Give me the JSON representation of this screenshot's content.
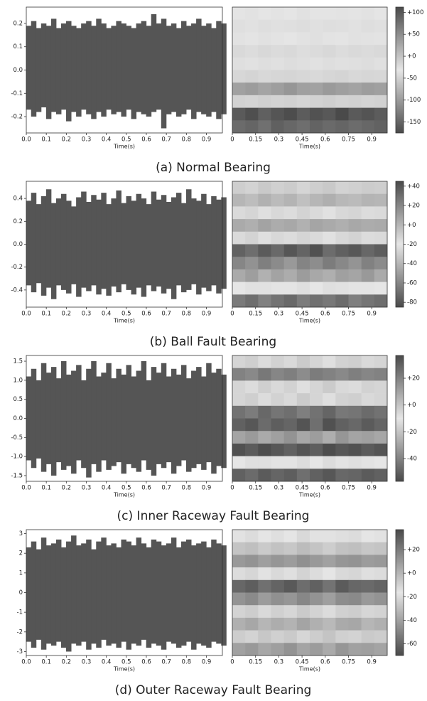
{
  "captions": [
    "(a) Normal Bearing",
    "(b) Ball Fault Bearing",
    "(c) Inner Raceway Fault Bearing",
    "(d) Outer Raceway Fault Bearing"
  ],
  "chart_data": [
    {
      "type": "area",
      "xlabel": "Time(s)",
      "color": "#555555",
      "x": [
        0,
        0.025,
        0.05,
        0.075,
        0.1,
        0.125,
        0.15,
        0.175,
        0.2,
        0.225,
        0.25,
        0.275,
        0.3,
        0.325,
        0.35,
        0.375,
        0.4,
        0.425,
        0.45,
        0.475,
        0.5,
        0.525,
        0.55,
        0.575,
        0.6,
        0.625,
        0.65,
        0.675,
        0.7,
        0.725,
        0.75,
        0.775,
        0.8,
        0.825,
        0.85,
        0.875,
        0.9,
        0.925,
        0.95,
        0.975
      ],
      "upper": [
        0.19,
        0.21,
        0.18,
        0.2,
        0.19,
        0.22,
        0.18,
        0.2,
        0.21,
        0.19,
        0.18,
        0.2,
        0.21,
        0.19,
        0.22,
        0.2,
        0.18,
        0.19,
        0.21,
        0.2,
        0.19,
        0.18,
        0.2,
        0.21,
        0.19,
        0.24,
        0.2,
        0.22,
        0.19,
        0.2,
        0.18,
        0.21,
        0.19,
        0.2,
        0.22,
        0.19,
        0.2,
        0.18,
        0.21,
        0.2
      ],
      "lower": [
        -0.17,
        -0.2,
        -0.18,
        -0.16,
        -0.21,
        -0.18,
        -0.19,
        -0.17,
        -0.22,
        -0.18,
        -0.2,
        -0.17,
        -0.19,
        -0.21,
        -0.18,
        -0.2,
        -0.17,
        -0.19,
        -0.18,
        -0.2,
        -0.17,
        -0.21,
        -0.18,
        -0.19,
        -0.2,
        -0.18,
        -0.17,
        -0.25,
        -0.19,
        -0.18,
        -0.2,
        -0.19,
        -0.17,
        -0.21,
        -0.18,
        -0.19,
        -0.2,
        -0.18,
        -0.21,
        -0.19
      ],
      "xlim": [
        0,
        0.98
      ],
      "xticks": [
        {
          "value": 0,
          "label": "0.0"
        },
        0.1,
        0.2,
        0.3,
        0.4,
        0.5,
        0.6,
        0.7,
        0.8,
        0.9
      ],
      "ylim": [
        -0.27,
        0.27
      ],
      "yticks": [
        0.2,
        0.1,
        {
          "value": 0,
          "label": "0.0"
        },
        -0.1,
        -0.2
      ]
    },
    {
      "type": "heatmap",
      "xlabel": "Time(s)",
      "colors": [
        "#4a4a4a",
        "#e6e6e6",
        "#4a4a4a"
      ],
      "xlim": [
        0,
        1
      ],
      "xticks": [
        0,
        0.15,
        0.3,
        0.45,
        0.6,
        0.75,
        0.9
      ],
      "zlim": [
        -175,
        112
      ],
      "zticks": [
        {
          "value": 100,
          "label": "+100"
        },
        {
          "value": 50,
          "label": "+50"
        },
        {
          "value": 0,
          "label": "+0"
        },
        -50,
        -100,
        -150
      ],
      "values": [
        [
          -30,
          -28,
          -32,
          -29,
          -31,
          -27,
          -30,
          -33,
          -29,
          -30,
          -28,
          -31
        ],
        [
          -25,
          -27,
          -24,
          -26,
          -25,
          -23,
          -26,
          -24,
          -25,
          -27,
          -24,
          -26
        ],
        [
          -35,
          -33,
          -36,
          -34,
          -32,
          -35,
          -37,
          -34,
          -33,
          -36,
          -35,
          -34
        ],
        [
          -20,
          -22,
          -19,
          -21,
          -20,
          -23,
          -21,
          -19,
          -22,
          -20,
          -21,
          -20
        ],
        [
          -38,
          -36,
          -39,
          -37,
          -40,
          -38,
          -36,
          -39,
          -37,
          -38,
          -40,
          -37
        ],
        [
          -45,
          -48,
          -44,
          -46,
          -47,
          -45,
          -43,
          -46,
          -48,
          -44,
          -46,
          -45
        ],
        [
          -95,
          -100,
          -92,
          -98,
          -105,
          -96,
          -94,
          -101,
          -97,
          -93,
          -99,
          -96
        ],
        [
          -50,
          -48,
          -52,
          -49,
          -51,
          -47,
          -50,
          -53,
          -49,
          -51,
          -48,
          -50
        ],
        [
          -160,
          -170,
          -155,
          -165,
          -172,
          -158,
          -168,
          -162,
          -175,
          -160,
          -166,
          -158
        ],
        [
          -145,
          -150,
          -140,
          -155,
          -148,
          -142,
          -152,
          -146,
          -150,
          -144,
          -148,
          -153
        ]
      ]
    },
    {
      "type": "area",
      "xlabel": "Time(s)",
      "color": "#555555",
      "x": [
        0,
        0.025,
        0.05,
        0.075,
        0.1,
        0.125,
        0.15,
        0.175,
        0.2,
        0.225,
        0.25,
        0.275,
        0.3,
        0.325,
        0.35,
        0.375,
        0.4,
        0.425,
        0.45,
        0.475,
        0.5,
        0.525,
        0.55,
        0.575,
        0.6,
        0.625,
        0.65,
        0.675,
        0.7,
        0.725,
        0.75,
        0.775,
        0.8,
        0.825,
        0.85,
        0.875,
        0.9,
        0.925,
        0.95,
        0.975
      ],
      "upper": [
        0.38,
        0.45,
        0.35,
        0.42,
        0.48,
        0.36,
        0.4,
        0.44,
        0.38,
        0.33,
        0.41,
        0.46,
        0.37,
        0.43,
        0.39,
        0.45,
        0.35,
        0.4,
        0.47,
        0.36,
        0.42,
        0.38,
        0.44,
        0.4,
        0.35,
        0.46,
        0.39,
        0.43,
        0.37,
        0.41,
        0.45,
        0.36,
        0.48,
        0.4,
        0.38,
        0.44,
        0.35,
        0.42,
        0.39,
        0.41
      ],
      "lower": [
        -0.36,
        -0.42,
        -0.34,
        -0.45,
        -0.38,
        -0.48,
        -0.36,
        -0.4,
        -0.43,
        -0.35,
        -0.46,
        -0.38,
        -0.41,
        -0.36,
        -0.44,
        -0.39,
        -0.45,
        -0.37,
        -0.42,
        -0.35,
        -0.4,
        -0.44,
        -0.38,
        -0.46,
        -0.36,
        -0.41,
        -0.37,
        -0.43,
        -0.39,
        -0.48,
        -0.36,
        -0.42,
        -0.4,
        -0.35,
        -0.44,
        -0.38,
        -0.41,
        -0.36,
        -0.43,
        -0.39
      ],
      "xlim": [
        0,
        0.98
      ],
      "xticks": [
        {
          "value": 0,
          "label": "0.0"
        },
        0.1,
        0.2,
        0.3,
        0.4,
        0.5,
        0.6,
        0.7,
        0.8,
        0.9
      ],
      "ylim": [
        -0.55,
        0.55
      ],
      "yticks": [
        0.4,
        0.2,
        {
          "value": 0,
          "label": "0.0"
        },
        -0.2,
        -0.4
      ]
    },
    {
      "type": "heatmap",
      "xlabel": "Time(s)",
      "colors": [
        "#4a4a4a",
        "#e6e6e6",
        "#4a4a4a"
      ],
      "xlim": [
        0,
        1
      ],
      "xticks": [
        0,
        0.15,
        0.3,
        0.45,
        0.6,
        0.75,
        0.9
      ],
      "zlim": [
        -85,
        45
      ],
      "zticks": [
        {
          "value": 40,
          "label": "+40"
        },
        {
          "value": 20,
          "label": "+20"
        },
        {
          "value": 0,
          "label": "+0"
        },
        -20,
        -40,
        -60,
        -80
      ],
      "values": [
        [
          -10,
          -12,
          -8,
          -11,
          -9,
          -13,
          -10,
          -8,
          -12,
          -11,
          -9,
          -10
        ],
        [
          0,
          -3,
          2,
          -2,
          1,
          -4,
          0,
          3,
          -1,
          -2,
          1,
          0
        ],
        [
          -15,
          -13,
          -17,
          -14,
          -16,
          -12,
          -15,
          -18,
          -14,
          -13,
          -16,
          -15
        ],
        [
          5,
          3,
          8,
          4,
          6,
          2,
          7,
          5,
          3,
          6,
          4,
          5
        ],
        [
          -25,
          -28,
          -23,
          -26,
          -24,
          -27,
          -25,
          -22,
          -26,
          -28,
          -24,
          -25
        ],
        [
          -75,
          -70,
          -78,
          -72,
          -80,
          -74,
          -82,
          -71,
          -76,
          -79,
          -73,
          -77
        ],
        [
          -60,
          -55,
          -63,
          -58,
          -52,
          -61,
          -57,
          -64,
          -59,
          -54,
          -62,
          -58
        ],
        [
          -45,
          -50,
          -42,
          -48,
          -44,
          -51,
          -46,
          -43,
          -49,
          -47,
          -52,
          -45
        ],
        [
          -20,
          -18,
          -22,
          -19,
          -21,
          -17,
          -20,
          -23,
          -18,
          -21,
          -19,
          -20
        ],
        [
          -65,
          -70,
          -62,
          -68,
          -72,
          -64,
          -69,
          -66,
          -71,
          -63,
          -67,
          -70
        ]
      ]
    },
    {
      "type": "area",
      "xlabel": "Time(s)",
      "color": "#555555",
      "x": [
        0,
        0.025,
        0.05,
        0.075,
        0.1,
        0.125,
        0.15,
        0.175,
        0.2,
        0.225,
        0.25,
        0.275,
        0.3,
        0.325,
        0.35,
        0.375,
        0.4,
        0.425,
        0.45,
        0.475,
        0.5,
        0.525,
        0.55,
        0.575,
        0.6,
        0.625,
        0.65,
        0.675,
        0.7,
        0.725,
        0.75,
        0.775,
        0.8,
        0.825,
        0.85,
        0.875,
        0.9,
        0.925,
        0.95,
        0.975
      ],
      "upper": [
        1.1,
        1.3,
        1.0,
        1.45,
        1.2,
        1.35,
        1.05,
        1.5,
        1.15,
        1.25,
        1.4,
        1.0,
        1.3,
        1.5,
        1.1,
        1.2,
        1.45,
        1.05,
        1.3,
        1.15,
        1.4,
        1.1,
        1.25,
        1.5,
        1.0,
        1.35,
        1.2,
        1.45,
        1.1,
        1.3,
        1.15,
        1.4,
        1.05,
        1.25,
        1.35,
        1.1,
        1.45,
        1.2,
        1.3,
        1.15
      ],
      "lower": [
        -1.1,
        -1.3,
        -1.05,
        -1.4,
        -1.2,
        -1.5,
        -1.15,
        -1.35,
        -1.25,
        -1.45,
        -1.1,
        -1.3,
        -1.55,
        -1.2,
        -1.4,
        -1.1,
        -1.35,
        -1.25,
        -1.15,
        -1.45,
        -1.2,
        -1.3,
        -1.4,
        -1.1,
        -1.35,
        -1.5,
        -1.2,
        -1.3,
        -1.15,
        -1.45,
        -1.25,
        -1.1,
        -1.4,
        -1.3,
        -1.2,
        -1.35,
        -1.15,
        -1.45,
        -1.25,
        -1.3
      ],
      "xlim": [
        0,
        0.98
      ],
      "xticks": [
        {
          "value": 0,
          "label": "0.0"
        },
        0.1,
        0.2,
        0.3,
        0.4,
        0.5,
        0.6,
        0.7,
        0.8,
        0.9
      ],
      "ylim": [
        -1.65,
        1.65
      ],
      "yticks": [
        1.5,
        {
          "value": 1,
          "label": "1.0"
        },
        0.5,
        {
          "value": 0,
          "label": "0.0"
        },
        -0.5,
        {
          "value": -1,
          "label": "-1.0"
        },
        -1.5
      ]
    },
    {
      "type": "heatmap",
      "xlabel": "Time(s)",
      "colors": [
        "#4a4a4a",
        "#e6e6e6",
        "#4a4a4a"
      ],
      "xlim": [
        0,
        1
      ],
      "xticks": [
        0,
        0.15,
        0.3,
        0.45,
        0.6,
        0.75,
        0.9
      ],
      "zlim": [
        -57,
        37
      ],
      "zticks": [
        {
          "value": 20,
          "label": "+20"
        },
        {
          "value": 0,
          "label": "+0"
        },
        -20,
        -40
      ],
      "values": [
        [
          -5,
          -3,
          -7,
          -4,
          -6,
          -2,
          -5,
          -8,
          -4,
          -3,
          -6,
          -5
        ],
        [
          20,
          18,
          23,
          19,
          21,
          17,
          22,
          20,
          18,
          21,
          19,
          20
        ],
        [
          -15,
          -13,
          -17,
          -14,
          -16,
          -12,
          -15,
          -18,
          -14,
          -13,
          -16,
          -15
        ],
        [
          -5,
          -3,
          -7,
          -4,
          -6,
          -2,
          -5,
          -8,
          -4,
          -3,
          -6,
          -5
        ],
        [
          -45,
          -42,
          -48,
          -44,
          -46,
          -41,
          -45,
          -49,
          -43,
          -44,
          -47,
          -45
        ],
        [
          -50,
          -53,
          -47,
          -51,
          -49,
          -54,
          -46,
          -55,
          -50,
          -48,
          -52,
          -49
        ],
        [
          -30,
          -33,
          -28,
          -31,
          -35,
          -29,
          -32,
          -27,
          -34,
          -30,
          -31,
          -29
        ],
        [
          -55,
          -52,
          -56,
          -53,
          -50,
          -54,
          -51,
          -56,
          -53,
          -55,
          -52,
          -54
        ],
        [
          -10,
          -8,
          -12,
          -9,
          -11,
          -7,
          -10,
          -13,
          -9,
          -8,
          -11,
          -10
        ],
        [
          -50,
          -47,
          -52,
          -49,
          -51,
          -46,
          -50,
          -53,
          -48,
          -49,
          -52,
          -50
        ]
      ]
    },
    {
      "type": "area",
      "xlabel": "Time(s)",
      "color": "#555555",
      "x": [
        0,
        0.025,
        0.05,
        0.075,
        0.1,
        0.125,
        0.15,
        0.175,
        0.2,
        0.225,
        0.25,
        0.275,
        0.3,
        0.325,
        0.35,
        0.375,
        0.4,
        0.425,
        0.45,
        0.475,
        0.5,
        0.525,
        0.55,
        0.575,
        0.6,
        0.625,
        0.65,
        0.675,
        0.7,
        0.725,
        0.75,
        0.775,
        0.8,
        0.825,
        0.85,
        0.875,
        0.9,
        0.925,
        0.95,
        0.975
      ],
      "upper": [
        2.3,
        2.6,
        2.2,
        2.8,
        2.4,
        2.5,
        2.7,
        2.3,
        2.6,
        2.9,
        2.4,
        2.5,
        2.7,
        2.2,
        2.6,
        2.8,
        2.4,
        2.5,
        2.3,
        2.7,
        2.6,
        2.4,
        2.8,
        2.5,
        2.3,
        2.7,
        2.6,
        2.4,
        2.5,
        2.8,
        2.3,
        2.6,
        2.7,
        2.4,
        2.5,
        2.6,
        2.3,
        2.7,
        2.5,
        2.4
      ],
      "lower": [
        -2.5,
        -2.8,
        -2.4,
        -2.9,
        -2.6,
        -2.7,
        -2.5,
        -2.8,
        -3.0,
        -2.6,
        -2.7,
        -2.5,
        -2.9,
        -2.6,
        -2.8,
        -2.4,
        -2.7,
        -2.6,
        -2.8,
        -2.5,
        -2.9,
        -2.6,
        -2.7,
        -2.4,
        -2.8,
        -2.6,
        -2.7,
        -2.9,
        -2.5,
        -2.6,
        -2.8,
        -2.7,
        -2.5,
        -2.9,
        -2.6,
        -2.7,
        -2.8,
        -2.5,
        -2.6,
        -2.7
      ],
      "xlim": [
        0,
        0.98
      ],
      "xticks": [
        {
          "value": 0,
          "label": "0.0"
        },
        0.1,
        0.2,
        0.3,
        0.4,
        0.5,
        0.6,
        0.7,
        0.8,
        0.9
      ],
      "ylim": [
        -3.2,
        3.2
      ],
      "yticks": [
        3,
        2,
        1,
        0,
        -1,
        -2,
        -3
      ]
    },
    {
      "type": "heatmap",
      "xlabel": "Time(s)",
      "colors": [
        "#4a4a4a",
        "#e6e6e6",
        "#4a4a4a"
      ],
      "xlim": [
        0,
        1
      ],
      "xticks": [
        0,
        0.15,
        0.3,
        0.45,
        0.6,
        0.75,
        0.9
      ],
      "zlim": [
        -70,
        37
      ],
      "zticks": [
        {
          "value": 20,
          "label": "+20"
        },
        {
          "value": 0,
          "label": "+0"
        },
        -20,
        -40,
        -60
      ],
      "values": [
        [
          -15,
          -13,
          -17,
          -14,
          -16,
          -12,
          -15,
          -18,
          -14,
          -13,
          -16,
          -15
        ],
        [
          -5,
          -3,
          -7,
          -4,
          -6,
          -2,
          -5,
          -8,
          -4,
          -3,
          -6,
          -5
        ],
        [
          10,
          12,
          8,
          11,
          9,
          13,
          10,
          7,
          11,
          12,
          9,
          10
        ],
        [
          -20,
          -22,
          -18,
          -21,
          -19,
          -23,
          -20,
          -17,
          -21,
          -22,
          -19,
          -20
        ],
        [
          -60,
          -63,
          -57,
          -61,
          -65,
          -58,
          -62,
          -56,
          -64,
          -60,
          -59,
          -61
        ],
        [
          -45,
          -48,
          -42,
          -46,
          -44,
          -49,
          -45,
          -41,
          -47,
          -48,
          -43,
          -45
        ],
        [
          -10,
          -8,
          -12,
          -9,
          -11,
          -7,
          -10,
          -13,
          -9,
          -8,
          -11,
          -10
        ],
        [
          -35,
          -38,
          -33,
          -36,
          -34,
          -39,
          -35,
          -32,
          -37,
          -38,
          -33,
          -35
        ],
        [
          -25,
          -23,
          -27,
          -24,
          -26,
          -22,
          -25,
          -28,
          -24,
          -23,
          -26,
          -25
        ],
        [
          -40,
          -43,
          -38,
          -41,
          -45,
          -39,
          -42,
          -37,
          -44,
          -40,
          -41,
          -39
        ]
      ]
    }
  ]
}
